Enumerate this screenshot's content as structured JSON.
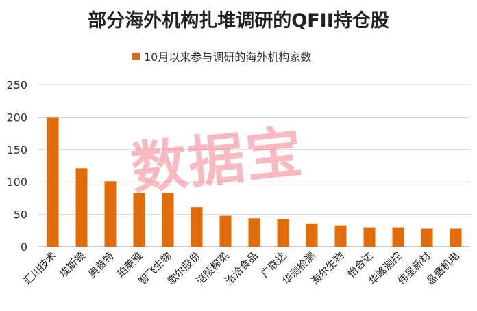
{
  "chart_data": {
    "type": "bar",
    "title": "部分海外机构扎堆调研的QFII持仓股",
    "legend_placement": "top",
    "series": [
      {
        "name": "10月以来参与调研的海外机构家数",
        "color": "#E36C0A",
        "values": [
          200,
          121,
          101,
          83,
          83,
          61,
          48,
          44,
          43,
          36,
          33,
          30,
          30,
          28,
          28
        ]
      }
    ],
    "categories": [
      "汇川技术",
      "埃斯顿",
      "奥普特",
      "珀莱雅",
      "智飞生物",
      "歌尔股份",
      "涪陵榨菜",
      "洽洽食品",
      "广联达",
      "华测检测",
      "海尔生物",
      "怡合达",
      "华峰测控",
      "伟星新材",
      "晶盛机电"
    ],
    "ylim": [
      0,
      250
    ],
    "yticks": [
      0,
      50,
      100,
      150,
      200,
      250
    ],
    "grid": true
  },
  "watermark": "数据宝"
}
